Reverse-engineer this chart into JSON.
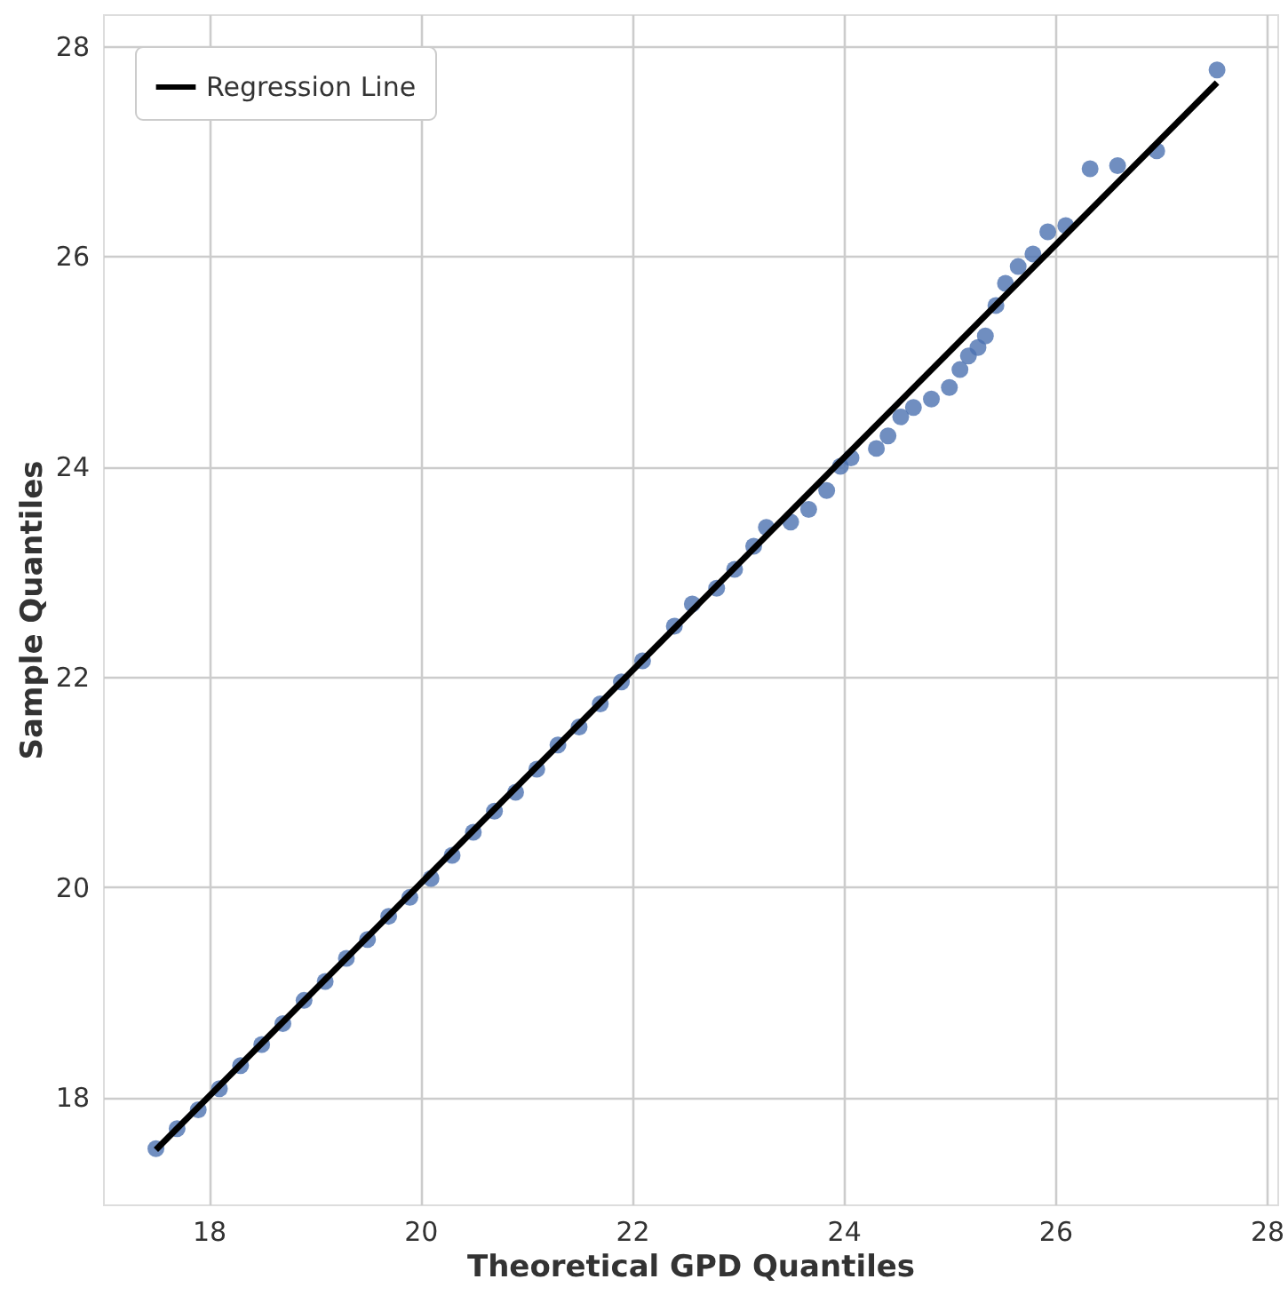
{
  "chart_data": {
    "type": "scatter",
    "xlabel": "Theoretical GPD Quantiles",
    "ylabel": "Sample Quantiles",
    "xlim": [
      17.0,
      28.1
    ],
    "ylim": [
      16.98,
      28.3
    ],
    "xticks": [
      18,
      20,
      22,
      24,
      26,
      28
    ],
    "yticks": [
      18,
      20,
      22,
      24,
      26,
      28
    ],
    "grid": true,
    "legend": "top left",
    "series": [
      {
        "color": "#4c72b0",
        "marker": "circle",
        "x": [
          17.5,
          17.7,
          17.9,
          18.1,
          18.3,
          18.5,
          18.7,
          18.9,
          19.1,
          19.3,
          19.5,
          19.7,
          19.9,
          20.1,
          20.3,
          20.5,
          20.7,
          20.9,
          21.1,
          21.3,
          21.5,
          21.7,
          21.9,
          22.1,
          22.4,
          22.57,
          22.8,
          22.97,
          23.15,
          23.27,
          23.5,
          23.67,
          23.84,
          23.97,
          24.07,
          24.31,
          24.42,
          24.54,
          24.66,
          24.83,
          25.0,
          25.1,
          25.18,
          25.27,
          25.34,
          25.44,
          25.53,
          25.65,
          25.79,
          25.93,
          26.1,
          26.33,
          26.59,
          26.96,
          27.53
        ],
        "values": [
          17.51,
          17.7,
          17.88,
          18.08,
          18.3,
          18.5,
          18.7,
          18.92,
          19.1,
          19.32,
          19.5,
          19.72,
          19.9,
          20.08,
          20.3,
          20.52,
          20.72,
          20.9,
          21.12,
          21.35,
          21.52,
          21.74,
          21.95,
          22.15,
          22.48,
          22.69,
          22.84,
          23.02,
          23.24,
          23.42,
          23.47,
          23.59,
          23.77,
          24.0,
          24.08,
          24.17,
          24.29,
          24.47,
          24.56,
          24.64,
          24.75,
          24.92,
          25.05,
          25.13,
          25.24,
          25.53,
          25.74,
          25.9,
          26.02,
          26.23,
          26.29,
          26.83,
          26.86,
          27.0,
          27.77
        ]
      },
      {
        "type": "line",
        "name": "Regression Line",
        "color": "#000000",
        "x": [
          17.5,
          27.53
        ],
        "values": [
          17.5,
          27.65
        ]
      }
    ]
  }
}
